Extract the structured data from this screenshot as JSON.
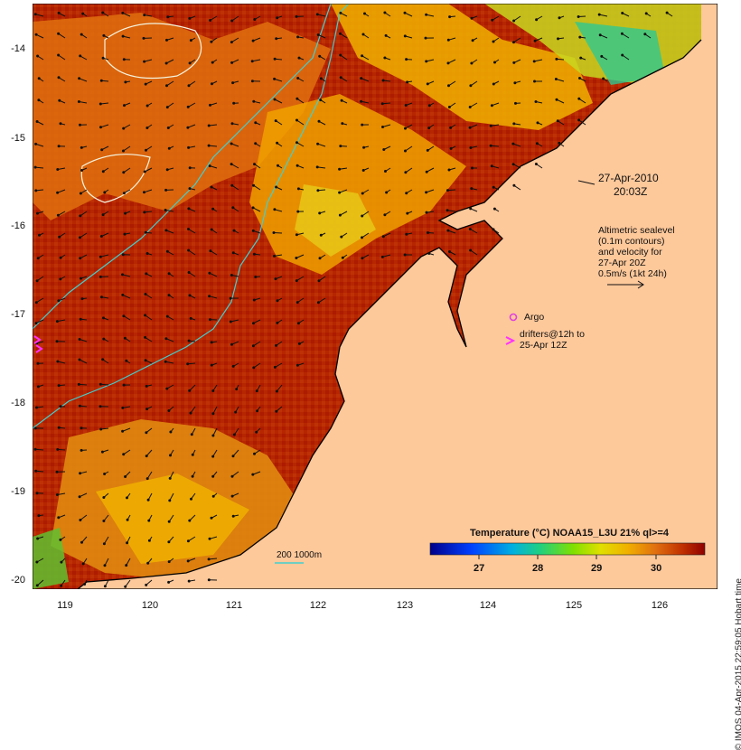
{
  "map": {
    "timestamp_date": "27-Apr-2010",
    "timestamp_time": "20:03Z",
    "altimetry_note": [
      "Altimetric sealevel",
      "(0.1m contours)",
      "and velocity for",
      "27-Apr 20Z",
      "0.5m/s (1kt 24h)"
    ],
    "argo_label": "Argo",
    "drifters_label": [
      "drifters@12h to",
      "25-Apr 12Z"
    ],
    "depth_legend": "200  1000m",
    "colorbar_title": "Temperature (°C) NOAA15_L3U 21% ql>=4",
    "colorbar_ticks": [
      "27",
      "28",
      "29",
      "30"
    ],
    "credit": "© IMOS 04-Apr-2015 22:59:05 Hobart time",
    "lat_labels": [
      "-14",
      "-15",
      "-16",
      "-17",
      "-18",
      "-19",
      "-20"
    ],
    "lon_labels": [
      "119",
      "120",
      "121",
      "122",
      "123",
      "124",
      "125",
      "126"
    ],
    "colors": {
      "land": "#fdc89a",
      "sst_warm": "#a80000",
      "sst_mid": "#e07010",
      "sst_cool": "#f0b000",
      "contour_isobath": "#40d0d0",
      "argo": "#e040e0",
      "drifter": "#ff30ff"
    }
  }
}
